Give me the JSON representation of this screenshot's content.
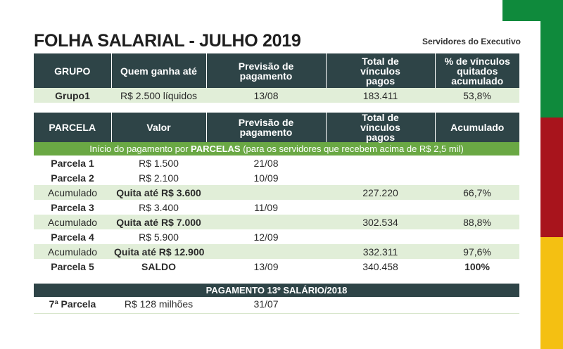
{
  "title": "FOLHA SALARIAL - JULHO 2019",
  "subtitle": "Servidores do Executivo",
  "table1": {
    "headers": [
      "GRUPO",
      "Quem ganha até",
      "Previsão de pagamento",
      "Total de vínculos pagos",
      "% de vínculos quitados acumulado"
    ],
    "row": [
      "Grupo1",
      "R$ 2.500 líquidos",
      "13/08",
      "183.411",
      "53,8%"
    ]
  },
  "table2": {
    "headers": [
      "PARCELA",
      "Valor",
      "Previsão de pagamento",
      "Total de vínculos pagos",
      "Acumulado"
    ],
    "banner": {
      "before": "Início do pagamento por ",
      "bold": "PARCELAS",
      "after": " (para os servidores que recebem acima de R$ 2,5 mil)"
    },
    "rows": [
      {
        "c1": "Parcela 1",
        "c2": "R$ 1.500",
        "c3": "21/08",
        "c4": "",
        "c5": ""
      },
      {
        "c1": "Parcela 2",
        "c2": "R$ 2.100",
        "c3": "10/09",
        "c4": "",
        "c5": ""
      },
      {
        "c1": "Acumulado",
        "c2": "Quita até R$ 3.600",
        "c3": "",
        "c4": "227.220",
        "c5": "66,7%"
      },
      {
        "c1": "Parcela 3",
        "c2": "R$ 3.400",
        "c3": "11/09",
        "c4": "",
        "c5": ""
      },
      {
        "c1": "Acumulado",
        "c2": "Quita até R$ 7.000",
        "c3": "",
        "c4": "302.534",
        "c5": "88,8%"
      },
      {
        "c1": "Parcela 4",
        "c2": "R$ 5.900",
        "c3": "12/09",
        "c4": "",
        "c5": ""
      },
      {
        "c1": "Acumulado",
        "c2": "Quita até R$ 12.900",
        "c3": "",
        "c4": "332.311",
        "c5": "97,6%"
      },
      {
        "c1": "Parcela 5",
        "c2": "SALDO",
        "c3": "13/09",
        "c4": "340.458",
        "c5": "100%"
      }
    ]
  },
  "table3": {
    "header": "PAGAMENTO 13º SALÁRIO/2018",
    "row": [
      "7ª Parcela",
      "R$ 128 milhões",
      "31/07",
      "",
      ""
    ]
  },
  "colors": {
    "header_bg": "#2e4447",
    "row_green": "#e1eed8",
    "banner_green": "#6aa844",
    "stripe_green": "#0f8a3c",
    "stripe_red": "#a8141c",
    "stripe_yellow": "#f4c012"
  }
}
